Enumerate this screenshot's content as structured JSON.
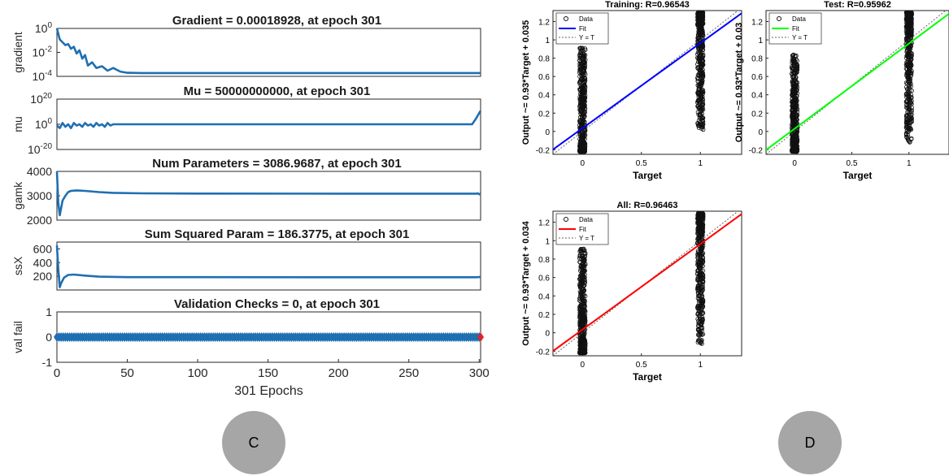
{
  "chart_data": [
    {
      "type": "line",
      "panel": "training-state",
      "xlabel": "301 Epochs",
      "xlim": [
        0,
        301
      ],
      "xticks": [
        0,
        50,
        100,
        150,
        200,
        250,
        300
      ],
      "series_color": "#1f6fb2",
      "subplots": [
        {
          "id": "gradient",
          "title": "Gradient = 0.00018928, at epoch 301",
          "ylabel": "gradient",
          "yscale": "log",
          "ylim": [
            0.0001,
            1
          ],
          "ytick_labels": [
            {
              "base": "10",
              "exp": "0",
              "v": 1
            },
            {
              "base": "10",
              "exp": "-2",
              "v": 0.01
            },
            {
              "base": "10",
              "exp": "-4",
              "v": 0.0001
            }
          ],
          "x": [
            0,
            1,
            2,
            4,
            6,
            8,
            10,
            12,
            14,
            16,
            18,
            20,
            22,
            25,
            28,
            32,
            36,
            40,
            45,
            50,
            60,
            80,
            120,
            200,
            301
          ],
          "y": [
            1,
            0.35,
            0.12,
            0.07,
            0.04,
            0.05,
            0.02,
            0.03,
            0.008,
            0.015,
            0.003,
            0.006,
            0.0008,
            0.0015,
            0.0005,
            0.0007,
            0.0003,
            0.0005,
            0.00025,
            0.0002,
            0.00019,
            0.00019,
            0.00019,
            0.00019,
            0.00018928
          ]
        },
        {
          "id": "mu",
          "title": "Mu = 50000000000, at epoch 301",
          "ylabel": "mu",
          "yscale": "log",
          "ylim": [
            1e-20,
            1e+20
          ],
          "ytick_labels": [
            {
              "base": "10",
              "exp": "20",
              "v": 1e+20
            },
            {
              "base": "10",
              "exp": "0",
              "v": 1
            },
            {
              "base": "10",
              "exp": "-20",
              "v": 1e-20
            }
          ],
          "x": [
            0,
            2,
            4,
            6,
            8,
            10,
            12,
            14,
            16,
            18,
            20,
            22,
            24,
            26,
            28,
            30,
            32,
            34,
            36,
            38,
            40,
            44,
            50,
            100,
            200,
            295,
            298,
            300,
            301
          ],
          "y": [
            0.1,
            0.001,
            10,
            0.01,
            1,
            0.001,
            10,
            0.1,
            1,
            0.01,
            10,
            0.1,
            1,
            0.01,
            10,
            0.1,
            1,
            0.01,
            10,
            0.1,
            1,
            1,
            1,
            1,
            1,
            1,
            100000,
            1000000000,
            50000000000
          ]
        },
        {
          "id": "gamk",
          "title": "Num Parameters = 3086.9687, at epoch 301",
          "ylabel": "gamk",
          "yscale": "linear",
          "ylim": [
            2000,
            4000
          ],
          "yticks": [
            2000,
            3000,
            4000
          ],
          "x": [
            0,
            1,
            2,
            3,
            4,
            6,
            8,
            10,
            14,
            20,
            30,
            40,
            60,
            100,
            200,
            298,
            299,
            300,
            301
          ],
          "y": [
            4000,
            2700,
            2200,
            2500,
            2800,
            3000,
            3150,
            3200,
            3220,
            3200,
            3150,
            3120,
            3100,
            3090,
            3088,
            3087,
            3100,
            3060,
            3086.9687
          ]
        },
        {
          "id": "ssx",
          "title": "Sum Squared Param = 186.3775, at epoch 301",
          "ylabel": "ssX",
          "yscale": "linear",
          "ylim": [
            0,
            700
          ],
          "yticks": [
            200,
            400,
            600
          ],
          "x": [
            0,
            1,
            2,
            3,
            5,
            8,
            12,
            20,
            30,
            50,
            100,
            200,
            298,
            300,
            301
          ],
          "y": [
            650,
            300,
            40,
            100,
            180,
            220,
            225,
            210,
            195,
            188,
            187,
            186.5,
            186.4,
            190,
            186.3775
          ]
        },
        {
          "id": "valfail",
          "title": "Validation Checks = 0, at epoch 301",
          "ylabel": "val fail",
          "yscale": "linear",
          "ylim": [
            -1,
            1
          ],
          "yticks": [
            -1,
            0,
            1
          ],
          "constant": 0,
          "marker": "diamond",
          "final_marker_color": "#d9262a"
        }
      ]
    },
    {
      "type": "scatter",
      "panel": "regression",
      "xlabel": "Target",
      "xlim": [
        -0.25,
        1.35
      ],
      "ylim": [
        -0.25,
        1.32
      ],
      "xticks": [
        0,
        0.5,
        1
      ],
      "yticks": [
        -0.2,
        0,
        0.2,
        0.4,
        0.6,
        0.8,
        1,
        1.2
      ],
      "legend": [
        "Data",
        "Fit",
        "Y = T"
      ],
      "subplots": [
        {
          "id": "training",
          "title": "Training: R=0.96543",
          "ylabel": "Output ~= 0.93*Target + 0.035",
          "slope": 0.93,
          "intercept": 0.035,
          "fit_color": "#0000ff",
          "clusters": [
            {
              "target": 0,
              "ymin": -0.22,
              "ymax": 0.92
            },
            {
              "target": 1,
              "ymin": 0.02,
              "ymax": 1.3
            }
          ]
        },
        {
          "id": "test",
          "title": "Test: R=0.95962",
          "ylabel": "Output ~= 0.93*Target + 0.03",
          "slope": 0.93,
          "intercept": 0.03,
          "fit_color": "#00ff00",
          "clusters": [
            {
              "target": 0,
              "ymin": -0.22,
              "ymax": 0.84
            },
            {
              "target": 1,
              "ymin": -0.12,
              "ymax": 1.3
            }
          ]
        },
        {
          "id": "all",
          "title": "All: R=0.96463",
          "ylabel": "Output ~= 0.93*Target + 0.034",
          "slope": 0.93,
          "intercept": 0.034,
          "fit_color": "#ff0000",
          "clusters": [
            {
              "target": 0,
              "ymin": -0.22,
              "ymax": 0.92
            },
            {
              "target": 1,
              "ymin": -0.12,
              "ymax": 1.3
            }
          ]
        }
      ]
    }
  ],
  "badges": {
    "left": "C",
    "right": "D"
  }
}
